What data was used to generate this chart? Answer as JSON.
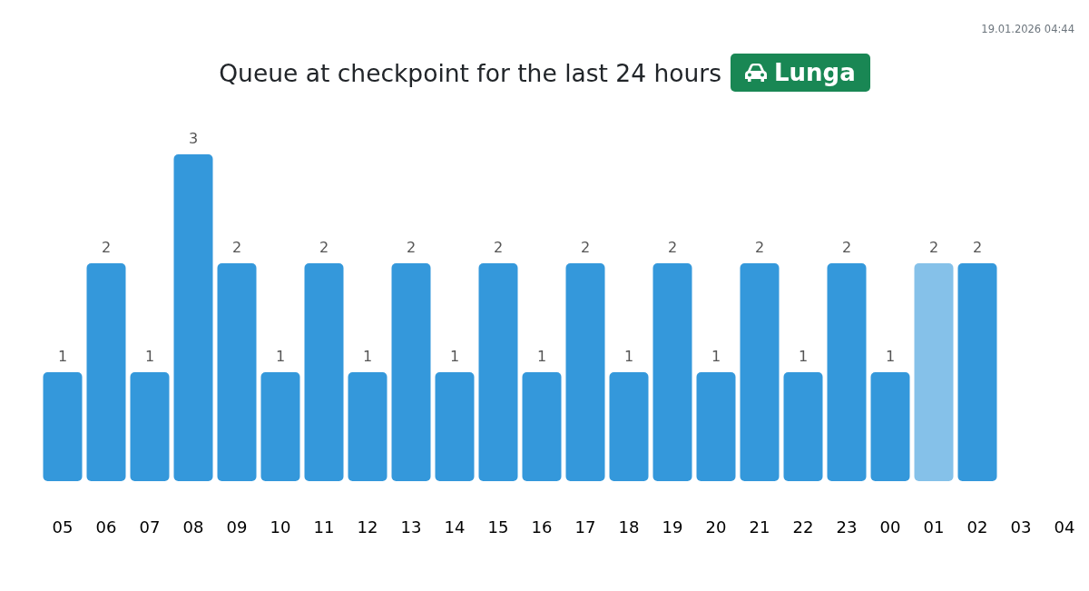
{
  "chart_data": {
    "type": "bar",
    "title": "Queue at checkpoint for the last 24 hours",
    "subtitle": "Lunga",
    "annotations": [
      "19.01.2026 04:44"
    ],
    "categories": [
      "05",
      "06",
      "07",
      "08",
      "09",
      "10",
      "11",
      "12",
      "13",
      "14",
      "15",
      "16",
      "17",
      "18",
      "19",
      "20",
      "21",
      "22",
      "23",
      "00",
      "01",
      "02",
      "03",
      "04"
    ],
    "values": [
      1,
      2,
      1,
      3,
      2,
      1,
      2,
      1,
      2,
      1,
      2,
      1,
      2,
      1,
      2,
      1,
      2,
      1,
      2,
      1,
      2,
      2,
      null,
      null
    ],
    "colors": [
      "#3498db",
      "#3498db",
      "#3498db",
      "#3498db",
      "#3498db",
      "#3498db",
      "#3498db",
      "#3498db",
      "#3498db",
      "#3498db",
      "#3498db",
      "#3498db",
      "#3498db",
      "#3498db",
      "#3498db",
      "#3498db",
      "#3498db",
      "#3498db",
      "#3498db",
      "#3498db",
      "#85c1e9",
      "#3498db",
      null,
      null
    ],
    "data_labels": true
  }
}
